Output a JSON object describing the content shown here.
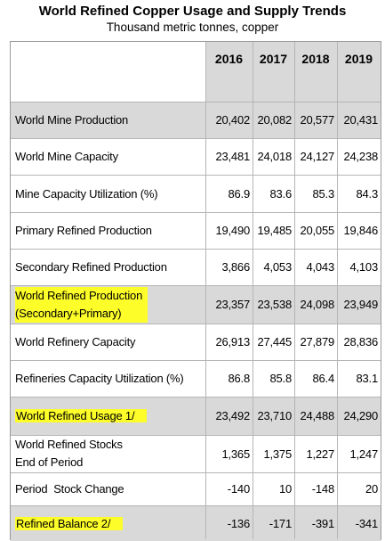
{
  "title": "World Refined Copper Usage and Supply Trends",
  "subtitle": "Thousand metric tonnes, copper",
  "columns": [
    "2016",
    "2017",
    "2018",
    "2019"
  ],
  "rows": [
    {
      "label_lines": [
        "World Mine Production"
      ],
      "values": [
        "20,402",
        "20,082",
        "20,577",
        "20,431"
      ],
      "shaded": true,
      "highlighted": false
    },
    {
      "label_lines": [
        "World Mine Capacity"
      ],
      "values": [
        "23,481",
        "24,018",
        "24,127",
        "24,238"
      ],
      "shaded": false,
      "highlighted": false
    },
    {
      "label_lines": [
        "Mine Capacity Utilization (%)"
      ],
      "values": [
        "86.9",
        "83.6",
        "85.3",
        "84.3"
      ],
      "shaded": false,
      "highlighted": false
    },
    {
      "label_lines": [
        "Primary Refined Production"
      ],
      "values": [
        "19,490",
        "19,485",
        "20,055",
        "19,846"
      ],
      "shaded": false,
      "highlighted": false
    },
    {
      "label_lines": [
        "Secondary Refined Production"
      ],
      "values": [
        "3,866",
        "4,053",
        "4,043",
        "4,103"
      ],
      "shaded": false,
      "highlighted": false
    },
    {
      "label_lines": [
        "World Refined Production",
        "(Secondary+Primary)"
      ],
      "values": [
        "23,357",
        "23,538",
        "24,098",
        "23,949"
      ],
      "shaded": true,
      "highlighted": true
    },
    {
      "label_lines": [
        "World Refinery Capacity"
      ],
      "values": [
        "26,913",
        "27,445",
        "27,879",
        "28,836"
      ],
      "shaded": false,
      "highlighted": false
    },
    {
      "label_lines": [
        "Refineries Capacity Utilization (%)"
      ],
      "values": [
        "86.8",
        "85.8",
        "86.4",
        "83.1"
      ],
      "shaded": false,
      "highlighted": false
    },
    {
      "label_lines": [
        "World Refined Usage 1/"
      ],
      "values": [
        "23,492",
        "23,710",
        "24,488",
        "24,290"
      ],
      "shaded": true,
      "highlighted": true
    },
    {
      "label_lines": [
        "World Refined Stocks",
        "End of Period"
      ],
      "values": [
        "1,365",
        "1,375",
        "1,227",
        "1,247"
      ],
      "shaded": false,
      "highlighted": false
    },
    {
      "label_lines": [
        "Period  Stock Change"
      ],
      "values": [
        "-140",
        "10",
        "-148",
        "20"
      ],
      "shaded": false,
      "highlighted": false
    },
    {
      "label_lines": [
        "Refined Balance 2/"
      ],
      "values": [
        "-136",
        "-171",
        "-391",
        "-341"
      ],
      "shaded": true,
      "highlighted": true
    }
  ],
  "colors": {
    "shade": "#d9d9d9",
    "highlight": "#fdfd2a",
    "grid": "#b5b5b5"
  }
}
